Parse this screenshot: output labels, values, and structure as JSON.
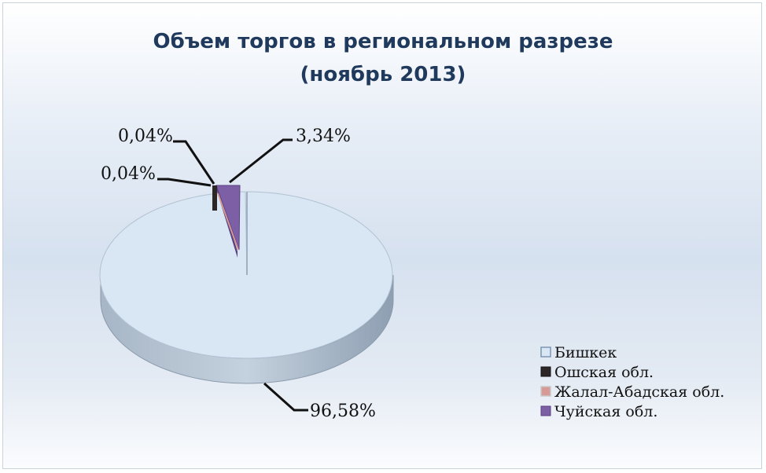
{
  "chart_data": {
    "type": "pie",
    "title_line1": "Объем торгов в региональном разрезе",
    "title_line2": "(ноябрь 2013)",
    "slices": [
      {
        "name": "Бишкек",
        "value": 96.58,
        "label": "96,58%",
        "color": "#d9e6f3",
        "side": "#9fb0c2"
      },
      {
        "name": "Ошская обл.",
        "value": 0.04,
        "label": "0,04%",
        "color": "#2c2626",
        "side": "#1a1616"
      },
      {
        "name": "Жалал-Абадская обл.",
        "value": 0.04,
        "label": "0,04%",
        "color": "#d79a96",
        "side": "#a86e6b"
      },
      {
        "name": "Чуйская обл.",
        "value": 3.34,
        "label": "3,34%",
        "color": "#7d5fa6",
        "side": "#5a4280"
      }
    ],
    "legend": [
      "Бишкек",
      "Ошская обл.",
      "Жалал-Абадская обл.",
      "Чуйская обл."
    ],
    "legend_position": "bottom-right"
  }
}
